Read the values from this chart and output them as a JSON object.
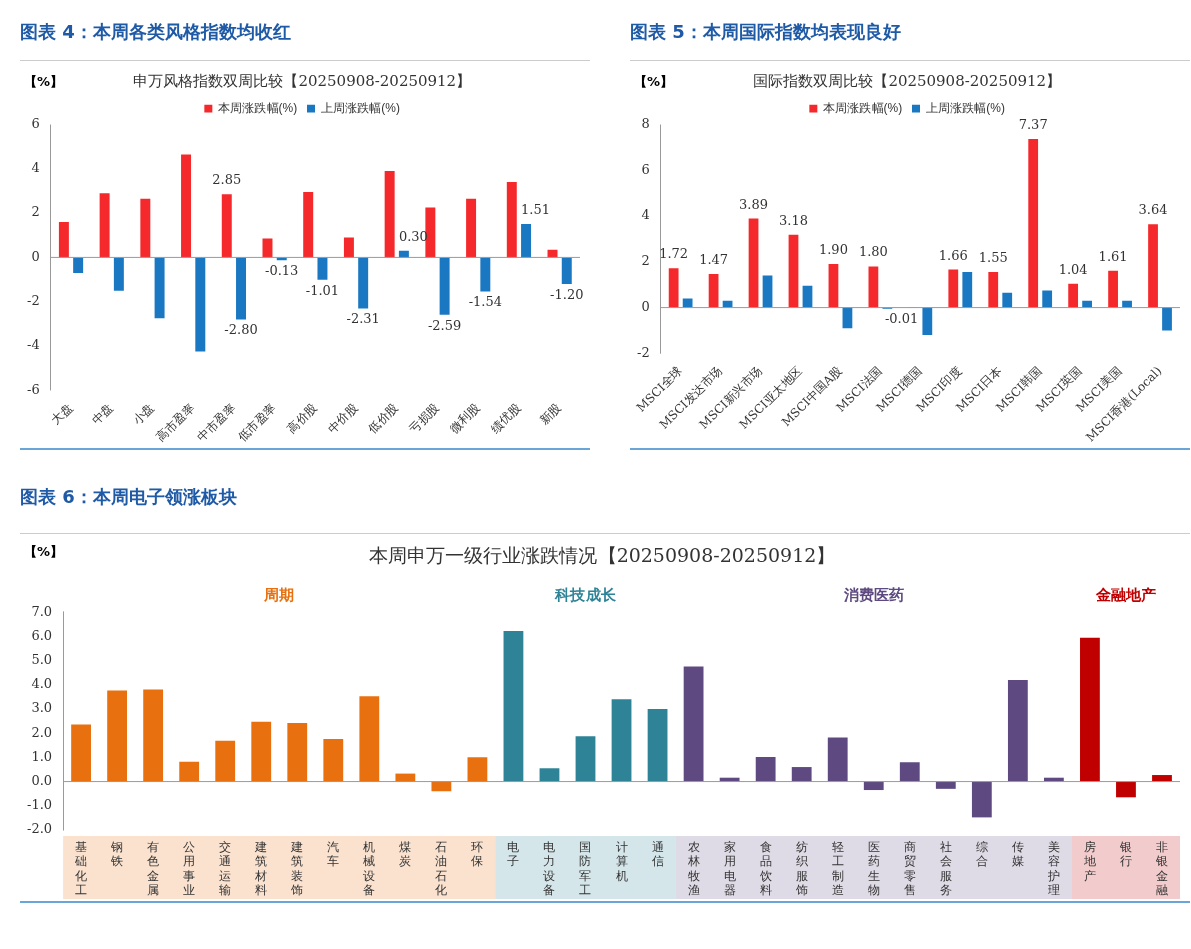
{
  "chart_data": [
    {
      "type": "bar",
      "title": "图表 4：本周各类风格指数均收红",
      "subtitle": "申万风格指数双周比较【20250908-20250912】",
      "ylabel": "【%】",
      "categories": [
        "大盘",
        "中盘",
        "小盘",
        "高市盈率",
        "中市盈率",
        "低市盈率",
        "高价股",
        "中价股",
        "低价股",
        "亏损股",
        "微利股",
        "绩优股",
        "新股"
      ],
      "series": [
        {
          "name": "本周涨跌幅(%)",
          "color": "#f5292b",
          "values": [
            1.6,
            2.9,
            2.65,
            4.65,
            2.85,
            0.85,
            2.95,
            0.9,
            3.9,
            2.25,
            2.65,
            3.4,
            0.35
          ],
          "value_labels": [
            null,
            null,
            null,
            null,
            "2.85",
            null,
            null,
            null,
            null,
            null,
            null,
            null,
            null
          ]
        },
        {
          "name": "上周涨跌幅(%)",
          "color": "#1a78c2",
          "values": [
            -0.7,
            -1.5,
            -2.75,
            -4.25,
            -2.8,
            -0.13,
            -1.01,
            -2.31,
            0.3,
            -2.59,
            -1.54,
            1.51,
            -1.2
          ],
          "value_labels": [
            null,
            null,
            null,
            null,
            "-2.80",
            "-0.13",
            "-1.01",
            "-2.31",
            "0.30",
            "-2.59",
            "-1.54",
            "1.51",
            "-1.20"
          ]
        }
      ],
      "ylim": [
        -6,
        6
      ],
      "yticks": [
        -6,
        -4,
        -2,
        0,
        2,
        4,
        6
      ],
      "ref_lines": [
        {
          "axis": "y",
          "value": 0,
          "color": "#999999"
        }
      ],
      "grid": false,
      "legend": "top"
    },
    {
      "type": "bar",
      "title": "图表 5：本周国际指数均表现良好",
      "subtitle": "国际指数双周比较【20250908-20250912】",
      "ylabel": "【%】",
      "categories": [
        "MSCI全球",
        "MSCI发达市场",
        "MSCI新兴市场",
        "MSCI亚太地区",
        "MSCI中国A股",
        "MSCI法国",
        "MSCI德国",
        "MSCI印度",
        "MSCI日本",
        "MSCI韩国",
        "MSCI英国",
        "MSCI美国",
        "MSCI香港(Local)"
      ],
      "series": [
        {
          "name": "本周涨跌幅(%)",
          "color": "#f5292b",
          "values": [
            1.72,
            1.47,
            3.89,
            3.18,
            1.9,
            1.8,
            -0.01,
            1.66,
            1.55,
            7.37,
            1.04,
            1.61,
            3.64
          ],
          "value_labels": [
            "1.72",
            "1.47",
            "3.89",
            "3.18",
            "1.90",
            "1.80",
            "-0.01",
            "1.66",
            "1.55",
            "7.37",
            "1.04",
            "1.61",
            "3.64"
          ]
        },
        {
          "name": "上周涨跌幅(%)",
          "color": "#1a78c2",
          "values": [
            0.4,
            0.3,
            1.4,
            0.95,
            -0.9,
            -0.05,
            -1.2,
            1.55,
            0.65,
            0.75,
            0.3,
            0.3,
            -1.0
          ]
        }
      ],
      "ylim": [
        -2,
        8
      ],
      "yticks": [
        -2,
        0,
        2,
        4,
        6,
        8
      ],
      "ref_lines": [
        {
          "axis": "y",
          "value": 0,
          "color": "#999999"
        }
      ],
      "grid": false,
      "legend": "top"
    },
    {
      "type": "bar",
      "title": "图表 6：本周电子领涨板块",
      "subtitle": "本周申万一级行业涨跌情况【20250908-20250912】",
      "ylabel": "【%】",
      "categories": [
        "基础化工",
        "钢铁",
        "有色金属",
        "公用事业",
        "交通运输",
        "建筑材料",
        "建筑装饰",
        "汽车",
        "机械设备",
        "煤炭",
        "石油石化",
        "环保",
        "电子",
        "电力设备",
        "国防军工",
        "计算机",
        "通信",
        "农林牧渔",
        "家用电器",
        "食品饮料",
        "纺织服饰",
        "轻工制造",
        "医药生物",
        "商贸零售",
        "社会服务",
        "综合",
        "传媒",
        "美容护理",
        "房地产",
        "银行",
        "非银金融"
      ],
      "values": [
        2.36,
        3.76,
        3.8,
        0.82,
        1.69,
        2.47,
        2.42,
        1.76,
        3.53,
        0.33,
        -0.4,
        1.0,
        6.22,
        0.55,
        1.87,
        3.4,
        3.0,
        4.75,
        0.16,
        1.02,
        0.6,
        1.82,
        -0.35,
        0.8,
        -0.3,
        -1.48,
        4.2,
        0.16,
        5.94,
        -0.65,
        0.27
      ],
      "colors": [
        "#e8700f",
        "#e8700f",
        "#e8700f",
        "#e8700f",
        "#e8700f",
        "#e8700f",
        "#e8700f",
        "#e8700f",
        "#e8700f",
        "#e8700f",
        "#e8700f",
        "#e8700f",
        "#2e8397",
        "#2e8397",
        "#2e8397",
        "#2e8397",
        "#2e8397",
        "#5e4a80",
        "#5e4a80",
        "#5e4a80",
        "#5e4a80",
        "#5e4a80",
        "#5e4a80",
        "#5e4a80",
        "#5e4a80",
        "#5e4a80",
        "#5e4a80",
        "#5e4a80",
        "#c00000",
        "#c00000",
        "#c00000"
      ],
      "annotations": [
        "周期",
        "科技成长",
        "消费医药",
        "金融地产"
      ],
      "ylim": [
        -2,
        7
      ],
      "yticks": [
        {
          "value": -2,
          "label": "-2.0"
        },
        {
          "value": -1,
          "label": "-1.0"
        },
        {
          "value": 0,
          "label": "0.0"
        },
        {
          "value": 1,
          "label": "1.0"
        },
        {
          "value": 2,
          "label": "2.0"
        },
        {
          "value": 3,
          "label": "3.0"
        },
        {
          "value": 4,
          "label": "4.0"
        },
        {
          "value": 5,
          "label": "5.0"
        },
        {
          "value": 6,
          "label": "6.0"
        },
        {
          "value": 7,
          "label": "7.0"
        }
      ],
      "ref_lines": [
        {
          "axis": "y",
          "value": 0,
          "color": "#999999"
        }
      ],
      "grid": false,
      "legend": false
    }
  ]
}
